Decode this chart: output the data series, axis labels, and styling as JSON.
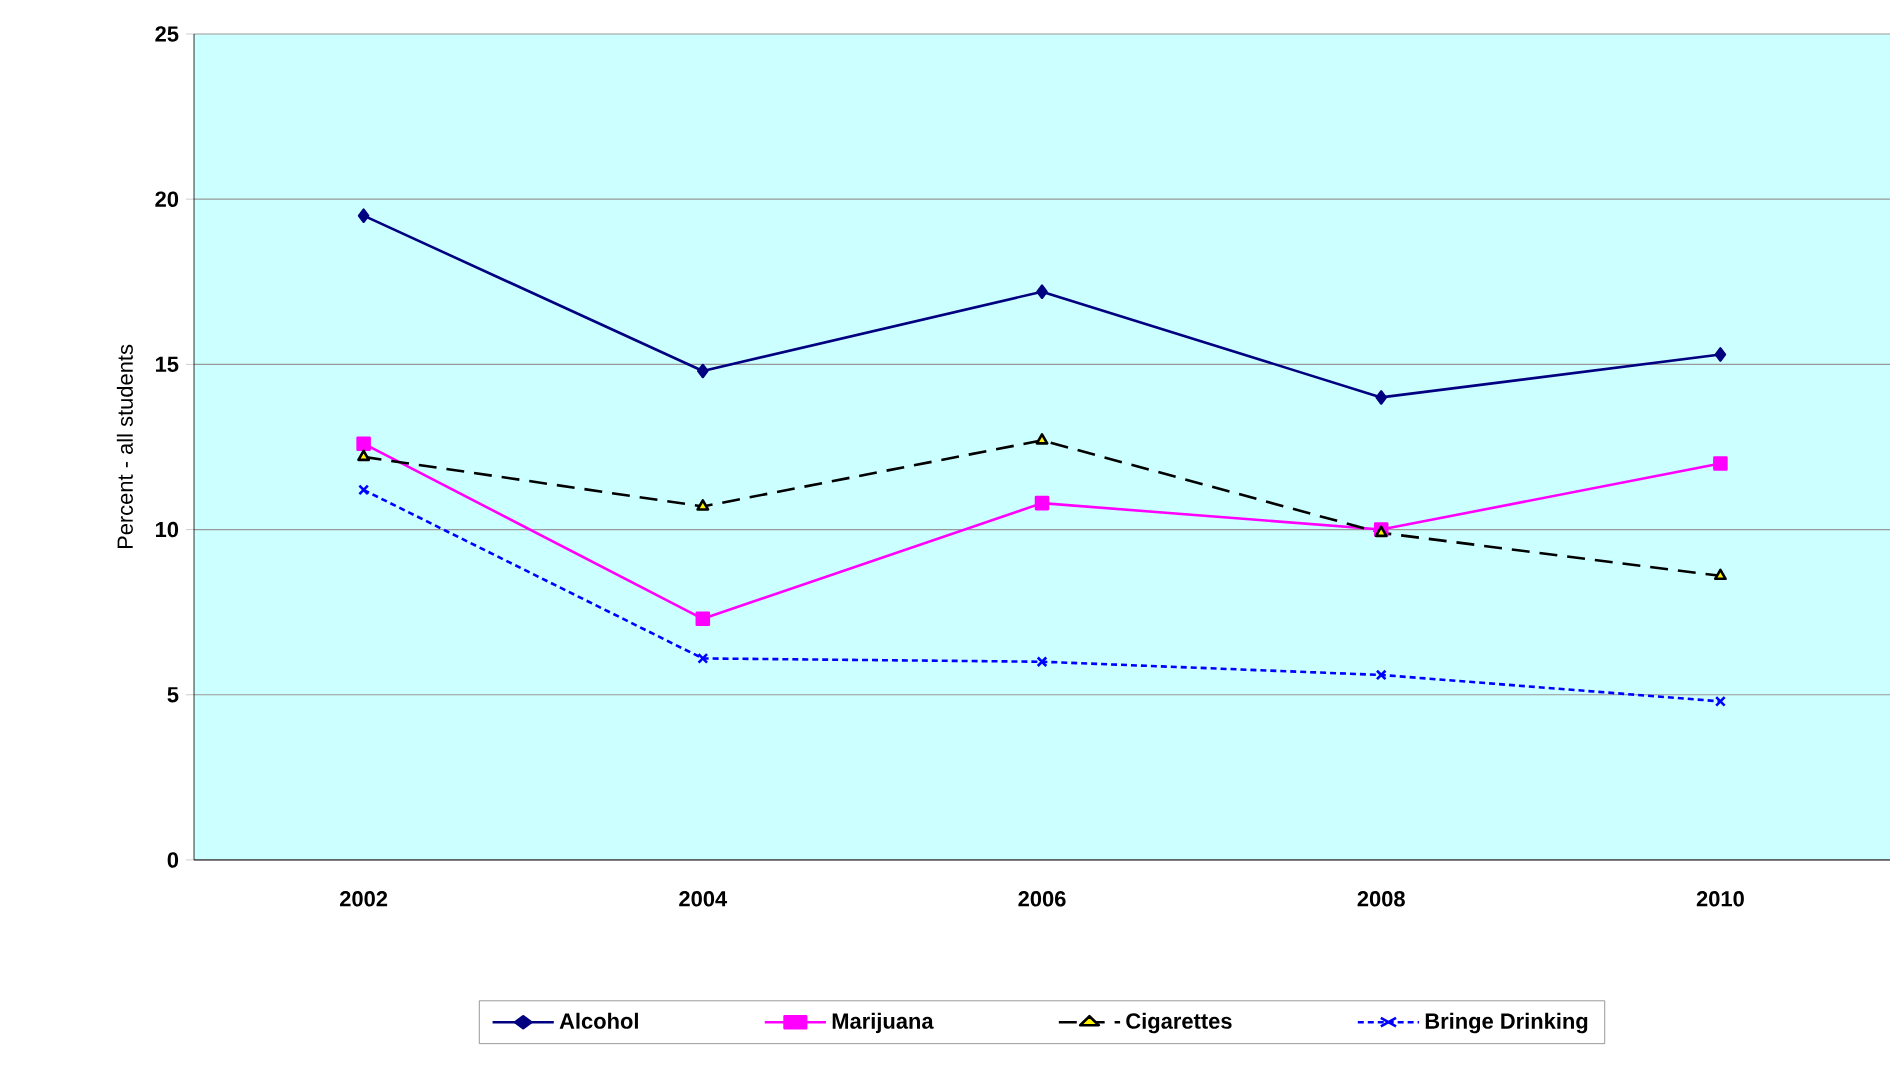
{
  "chart_data": {
    "type": "line",
    "ylabel": "Percent - all students",
    "categories": [
      "2002",
      "2004",
      "2006",
      "2008",
      "2010"
    ],
    "ylim": [
      0,
      25
    ],
    "yticks": [
      0,
      5,
      10,
      15,
      20,
      25
    ],
    "grid": "y",
    "legend": "bottom",
    "series": [
      {
        "name": "Alcohol",
        "color": "#000080",
        "marker": "diamond",
        "line_style": "solid",
        "values": [
          19.5,
          14.8,
          17.2,
          14.0,
          15.3
        ]
      },
      {
        "name": "Marijuana",
        "color": "#ff00ff",
        "marker": "square",
        "line_style": "solid",
        "values": [
          12.6,
          7.3,
          10.8,
          10.0,
          12.0
        ]
      },
      {
        "name": "Cigarettes",
        "color": "#000000",
        "marker": "triangle",
        "line_style": "dashed",
        "values": [
          12.2,
          10.7,
          12.7,
          9.9,
          8.6
        ]
      },
      {
        "name": "Bringe Drinking",
        "color": "#0000ff",
        "marker": "cross",
        "line_style": "dotted",
        "values": [
          11.2,
          6.1,
          6.0,
          5.6,
          4.8
        ]
      }
    ]
  }
}
